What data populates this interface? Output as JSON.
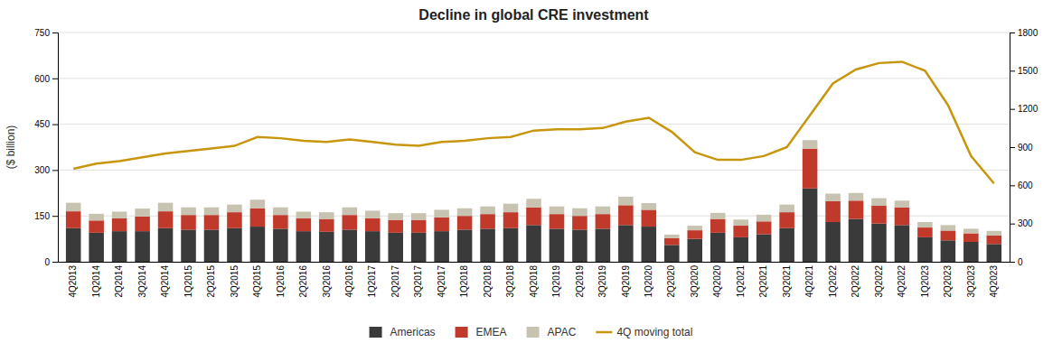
{
  "chart_data": {
    "type": "bar",
    "title": "Decline in global CRE investment",
    "ylabel": "($ billion)",
    "categories": [
      "4Q2013",
      "1Q2014",
      "2Q2014",
      "3Q2014",
      "4Q2014",
      "1Q2015",
      "2Q2015",
      "3Q2015",
      "4Q2015",
      "1Q2016",
      "2Q2016",
      "3Q2016",
      "4Q2016",
      "1Q2017",
      "2Q2017",
      "3Q2017",
      "4Q2017",
      "1Q2018",
      "2Q2018",
      "3Q2018",
      "4Q2018",
      "1Q2019",
      "2Q2019",
      "3Q2019",
      "4Q2019",
      "1Q2020",
      "2Q2020",
      "3Q2020",
      "4Q2020",
      "1Q2021",
      "2Q2021",
      "3Q2021",
      "4Q2021",
      "1Q2022",
      "2Q2022",
      "3Q2022",
      "4Q2022",
      "1Q2023",
      "2Q2023",
      "3Q2023",
      "4Q2023"
    ],
    "series": [
      {
        "name": "Americas",
        "type": "bar",
        "color": "#3a3a3a",
        "values": [
          110,
          95,
          100,
          100,
          110,
          105,
          105,
          110,
          115,
          108,
          100,
          98,
          105,
          100,
          95,
          95,
          100,
          105,
          108,
          110,
          120,
          108,
          105,
          108,
          120,
          115,
          55,
          75,
          95,
          80,
          90,
          110,
          240,
          130,
          140,
          125,
          120,
          80,
          70,
          65,
          58
        ]
      },
      {
        "name": "EMEA",
        "type": "bar",
        "color": "#c0392b",
        "values": [
          55,
          40,
          42,
          48,
          55,
          48,
          48,
          52,
          60,
          45,
          42,
          42,
          48,
          42,
          42,
          42,
          45,
          45,
          48,
          52,
          58,
          48,
          45,
          48,
          65,
          55,
          22,
          28,
          45,
          38,
          42,
          52,
          130,
          68,
          60,
          58,
          58,
          32,
          32,
          28,
          28
        ]
      },
      {
        "name": "APAC",
        "type": "bar",
        "color": "#c8c3b0",
        "values": [
          28,
          22,
          22,
          26,
          28,
          25,
          25,
          25,
          28,
          25,
          22,
          22,
          25,
          25,
          22,
          22,
          25,
          25,
          25,
          28,
          28,
          25,
          25,
          25,
          28,
          22,
          12,
          15,
          20,
          20,
          22,
          25,
          28,
          25,
          25,
          25,
          22,
          18,
          18,
          15,
          15
        ]
      },
      {
        "name": "4Q moving total",
        "type": "line",
        "axis": "y2",
        "color": "#c8960c",
        "values": [
          730,
          770,
          790,
          820,
          850,
          870,
          890,
          910,
          980,
          970,
          950,
          940,
          960,
          940,
          920,
          910,
          940,
          950,
          970,
          980,
          1030,
          1040,
          1040,
          1050,
          1100,
          1130,
          1020,
          860,
          800,
          800,
          830,
          900,
          1150,
          1400,
          1510,
          1560,
          1570,
          1500,
          1230,
          830,
          615
        ]
      }
    ],
    "stacked": true,
    "ylim": [
      0,
      750
    ],
    "yticks": [
      0,
      150,
      300,
      450,
      600,
      750
    ],
    "y2lim": [
      0,
      1800
    ],
    "y2ticks": [
      0,
      300,
      600,
      900,
      1200,
      1500,
      1800
    ],
    "grid": true,
    "legend": "bottom"
  }
}
